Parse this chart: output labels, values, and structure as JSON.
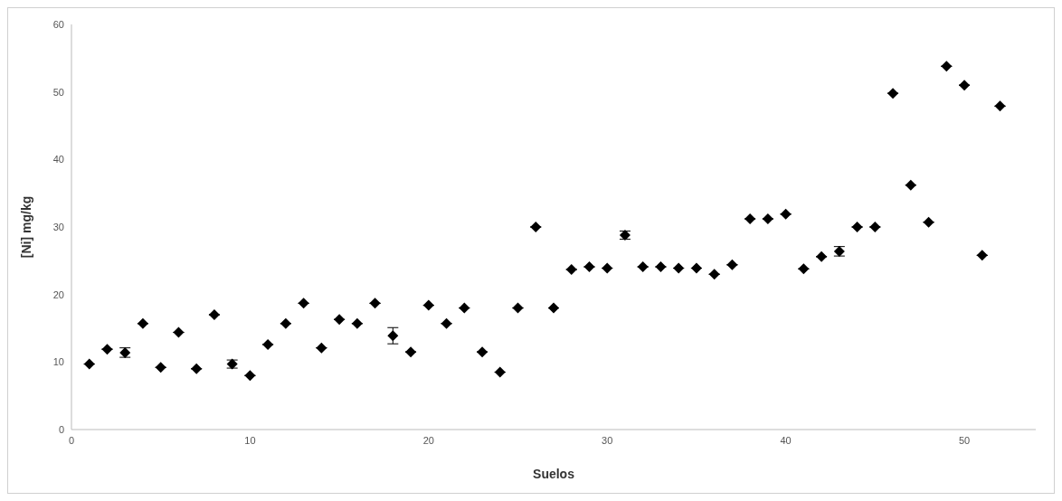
{
  "chart_data": {
    "type": "scatter",
    "xlabel": "Suelos",
    "ylabel": "[Ni] mg/kg",
    "x": [
      1,
      2,
      3,
      4,
      5,
      6,
      7,
      8,
      9,
      10,
      11,
      12,
      13,
      14,
      15,
      16,
      17,
      18,
      19,
      20,
      21,
      22,
      23,
      24,
      25,
      26,
      27,
      28,
      29,
      30,
      31,
      32,
      33,
      34,
      35,
      36,
      37,
      38,
      39,
      40,
      41,
      42,
      43,
      44,
      45,
      46,
      47,
      48,
      49,
      50,
      51,
      52
    ],
    "series": [
      {
        "color": "#000000",
        "values": [
          9.7,
          11.9,
          11.4,
          15.7,
          9.2,
          14.4,
          9.0,
          17.0,
          9.7,
          8.0,
          12.6,
          15.7,
          18.7,
          12.1,
          16.3,
          15.7,
          18.7,
          13.9,
          11.5,
          18.4,
          15.7,
          18.0,
          11.5,
          8.5,
          18.0,
          30.0,
          18.0,
          23.7,
          24.1,
          23.9,
          28.8,
          24.1,
          24.1,
          23.9,
          23.9,
          23.0,
          24.4,
          31.2,
          31.2,
          31.9,
          23.8,
          25.6,
          26.4,
          30.0,
          30.0,
          49.8,
          36.2,
          30.7,
          53.8,
          51.0,
          25.8,
          47.9
        ],
        "errors": [
          null,
          null,
          0.7,
          null,
          null,
          null,
          null,
          null,
          0.6,
          null,
          null,
          null,
          null,
          null,
          null,
          null,
          null,
          1.2,
          null,
          null,
          null,
          null,
          null,
          null,
          null,
          null,
          null,
          null,
          null,
          null,
          0.6,
          null,
          null,
          null,
          null,
          null,
          null,
          null,
          null,
          null,
          null,
          null,
          0.7,
          null,
          null,
          null,
          null,
          null,
          null,
          null,
          null,
          null
        ]
      }
    ],
    "xlim": [
      0,
      54
    ],
    "xticks": [
      0,
      10,
      20,
      30,
      40,
      50
    ],
    "ylim": [
      0,
      60
    ],
    "yticks": [
      0,
      10,
      20,
      30,
      40,
      50,
      60
    ],
    "marker": "diamond",
    "grid": false,
    "legend": false
  }
}
